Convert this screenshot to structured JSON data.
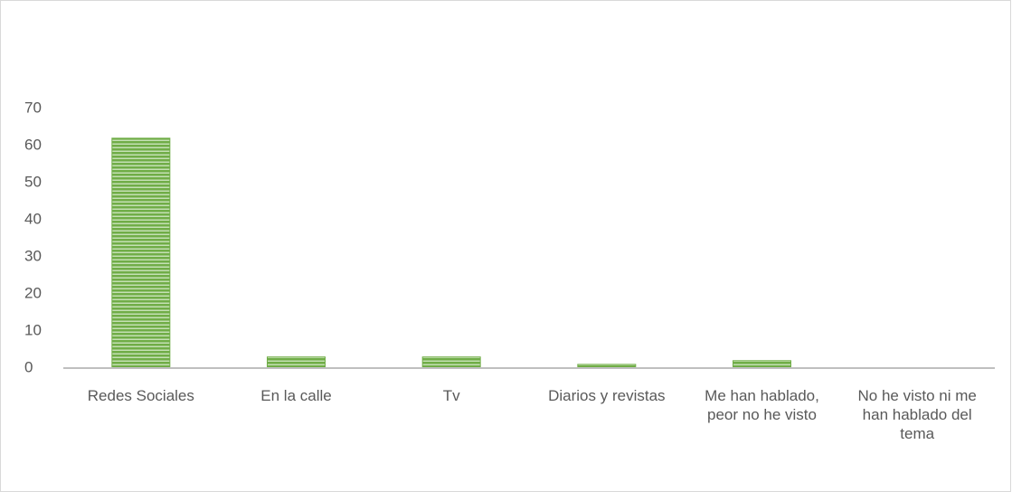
{
  "chart_data": {
    "type": "bar",
    "categories": [
      "Redes Sociales",
      "En la calle",
      "Tv",
      "Diarios y revistas",
      "Me han hablado, peor no he visto",
      "No he visto ni me han hablado del tema"
    ],
    "values": [
      62,
      3,
      3,
      1,
      2,
      0
    ],
    "color": "#70ad47",
    "ylim": [
      0,
      70
    ],
    "yticks": [
      0,
      10,
      20,
      30,
      40,
      50,
      60,
      70
    ],
    "grid": false
  }
}
